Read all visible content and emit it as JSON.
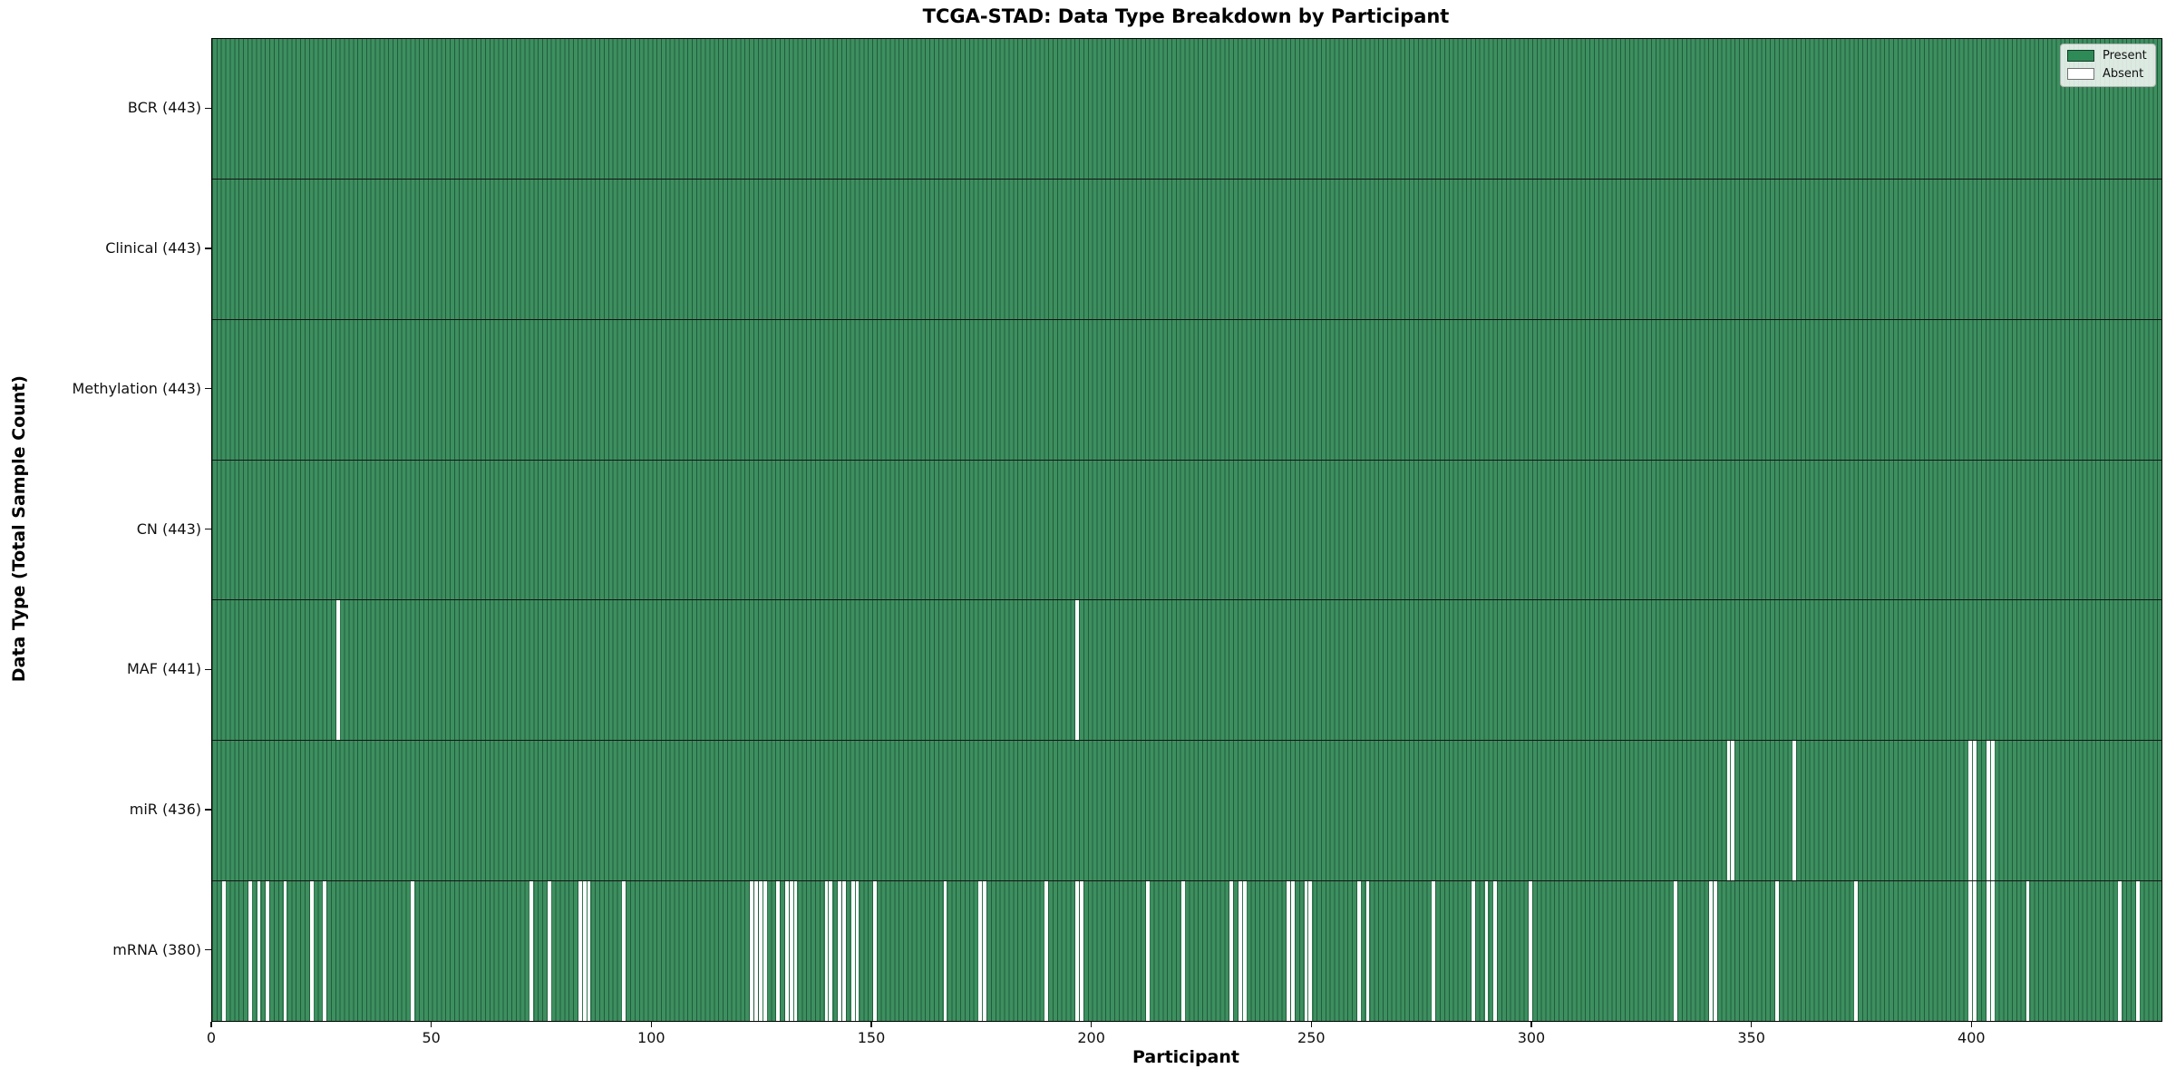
{
  "chart_data": {
    "type": "heatmap",
    "title": "TCGA-STAD: Data Type Breakdown by Participant",
    "xlabel": "Participant",
    "ylabel": "Data Type (Total Sample Count)",
    "x_range": [
      0,
      443
    ],
    "n_participants": 443,
    "x_ticks": [
      0,
      50,
      100,
      150,
      200,
      250,
      300,
      350,
      400
    ],
    "grid": false,
    "legend_position": "upper right",
    "legend": [
      {
        "label": "Present",
        "color": "#2e8b57"
      },
      {
        "label": "Absent",
        "color": "#ffffff"
      }
    ],
    "colors": {
      "present_fill": "#3d8f5f",
      "bar_edge": "#215c3c",
      "absent_fill": "#ffffff",
      "row_separator": "#151515"
    },
    "rows": [
      {
        "data_type": "BCR",
        "label": "BCR (443)",
        "total": 443,
        "absent_participants": []
      },
      {
        "data_type": "Clinical",
        "label": "Clinical (443)",
        "total": 443,
        "absent_participants": []
      },
      {
        "data_type": "Methylation",
        "label": "Methylation (443)",
        "total": 443,
        "absent_participants": []
      },
      {
        "data_type": "CN",
        "label": "CN (443)",
        "total": 443,
        "absent_participants": []
      },
      {
        "data_type": "MAF",
        "label": "MAF (441)",
        "total": 441,
        "absent_participants": [
          28,
          196
        ]
      },
      {
        "data_type": "miR",
        "label": "miR (436)",
        "total": 436,
        "absent_participants": [
          344,
          345,
          359,
          399,
          400,
          403,
          404
        ]
      },
      {
        "data_type": "mRNA",
        "label": "mRNA (380)",
        "total": 380,
        "absent_participants": [
          2,
          8,
          10,
          12,
          16,
          22,
          25,
          45,
          72,
          76,
          83,
          84,
          85,
          93,
          122,
          123,
          124,
          125,
          128,
          130,
          131,
          132,
          139,
          140,
          142,
          143,
          145,
          146,
          150,
          166,
          174,
          175,
          189,
          196,
          197,
          212,
          220,
          231,
          233,
          234,
          244,
          245,
          248,
          249,
          260,
          262,
          277,
          286,
          289,
          291,
          299,
          332,
          340,
          341,
          355,
          373,
          399,
          400,
          403,
          404,
          412,
          433,
          437
        ]
      }
    ]
  }
}
